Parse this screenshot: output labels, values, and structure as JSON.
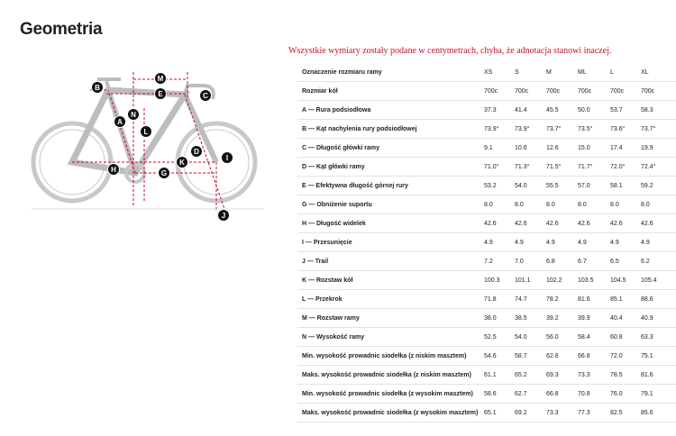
{
  "header": {
    "title": "Geometria"
  },
  "note": "Wszystkie wymiary zostały podane w centymetrach, chyba, że adnotacja stanowi inaczej.",
  "diagram": {
    "labels": [
      "M",
      "B",
      "E",
      "C",
      "A",
      "N",
      "L",
      "D",
      "I",
      "K",
      "H",
      "G",
      "J"
    ]
  },
  "table": {
    "header": [
      "Oznaczenie rozmiaru ramy",
      "XS",
      "S",
      "M",
      "ML",
      "L",
      "XL"
    ],
    "rows": [
      [
        "Rozmiar kół",
        "700c",
        "700c",
        "700c",
        "700c",
        "700c",
        "700c"
      ],
      [
        "A — Rura podsiodłowa",
        "37.3",
        "41.4",
        "45.5",
        "50.0",
        "53.7",
        "58.3"
      ],
      [
        "B — Kąt nachylenia rury podsiodłowej",
        "73.9°",
        "73.9°",
        "73.7°",
        "73.5°",
        "73.6°",
        "73.7°"
      ],
      [
        "C — Długość główki ramy",
        "9.1",
        "10.6",
        "12.6",
        "15.0",
        "17.4",
        "19.9"
      ],
      [
        "D — Kąt główki ramy",
        "71.0°",
        "71.3°",
        "71.5°",
        "71.7°",
        "72.0°",
        "72.4°"
      ],
      [
        "E — Efektywna długość górnej rury",
        "53.2",
        "54.0",
        "55.5",
        "57.0",
        "58.1",
        "59.2"
      ],
      [
        "G — Obniżenie suportu",
        "8.0",
        "8.0",
        "8.0",
        "8.0",
        "8.0",
        "8.0"
      ],
      [
        "H — Długość widelek",
        "42.6",
        "42.6",
        "42.6",
        "42.6",
        "42.6",
        "42.6"
      ],
      [
        "I — Przesunięcie",
        "4.9",
        "4.9",
        "4.9",
        "4.9",
        "4.9",
        "4.9"
      ],
      [
        "J — Trail",
        "7.2",
        "7.0",
        "6.8",
        "6.7",
        "6.5",
        "6.2"
      ],
      [
        "K — Rozstaw kół",
        "100.3",
        "101.1",
        "102.2",
        "103.5",
        "104.5",
        "105.4"
      ],
      [
        "L — Przekrok",
        "71.8",
        "74.7",
        "78.2",
        "81.6",
        "85.1",
        "88.6"
      ],
      [
        "M — Rozstaw ramy",
        "38.0",
        "38.5",
        "39.2",
        "39.9",
        "40.4",
        "40.9"
      ],
      [
        "N — Wysokość ramy",
        "52.5",
        "54.0",
        "56.0",
        "58.4",
        "60.8",
        "63.3"
      ],
      [
        "Min. wysokość prowadnic siodełka (z niskim masztem)",
        "54.6",
        "58.7",
        "62.8",
        "66.8",
        "72.0",
        "75.1"
      ],
      [
        "Maks. wysokość prowadnic siodełka (z niskim masztem)",
        "61.1",
        "65.2",
        "69.3",
        "73.3",
        "78.5",
        "81.6"
      ],
      [
        "Min. wysokość prowadnic siodełka (z wysokim masztem)",
        "58.6",
        "62.7",
        "66.8",
        "70.8",
        "76.0",
        "79.1"
      ],
      [
        "Maks. wysokość prowadnic siodełka (z wysokim masztem)",
        "65.1",
        "69.2",
        "73.3",
        "77.3",
        "82.5",
        "85.6"
      ]
    ]
  }
}
